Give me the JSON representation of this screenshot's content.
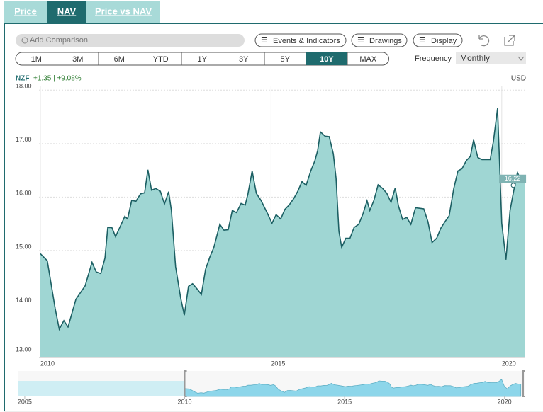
{
  "tabs": [
    "Price",
    "NAV",
    "Price vs NAV"
  ],
  "toolbar": {
    "search": "Add Comparison",
    "buttons": [
      "Events & Indicators",
      "Drawings",
      "Display"
    ]
  },
  "ranges": [
    "1M",
    "3M",
    "6M",
    "YTD",
    "1Y",
    "3Y",
    "5Y",
    "10Y",
    "MAX"
  ],
  "frequency": {
    "label": "Frequency",
    "value": "Monthly"
  },
  "ticker": {
    "symbol": "NZF",
    "change": "+1.35 | +9.08%",
    "currency": "USD"
  },
  "chart_data": {
    "type": "area",
    "color": "#9fd6d3",
    "line_color": "#1c5f63",
    "x": [
      2010.0,
      2010.15,
      2010.32,
      2010.41,
      2010.51,
      2010.6,
      2010.77,
      2010.97,
      2011.12,
      2011.21,
      2011.31,
      2011.4,
      2011.46,
      2011.55,
      2011.63,
      2011.83,
      2011.89,
      2011.98,
      2012.07,
      2012.17,
      2012.26,
      2012.33,
      2012.41,
      2012.5,
      2012.6,
      2012.69,
      2012.78,
      2012.84,
      2012.93,
      2013.04,
      2013.12,
      2013.21,
      2013.3,
      2013.39,
      2013.49,
      2013.58,
      2013.67,
      2013.76,
      2013.89,
      2013.98,
      2014.07,
      2014.16,
      2014.25,
      2014.35,
      2014.44,
      2014.5,
      2014.59,
      2014.68,
      2014.78,
      2014.93,
      2015.02,
      2015.11,
      2015.21,
      2015.3,
      2015.39,
      2015.49,
      2015.58,
      2015.67,
      2015.76,
      2015.86,
      2015.95,
      2016.01,
      2016.07,
      2016.17,
      2016.26,
      2016.35,
      2016.41,
      2016.47,
      2016.53,
      2016.62,
      2016.71,
      2016.8,
      2016.9,
      2016.99,
      2017.08,
      2017.14,
      2017.23,
      2017.32,
      2017.42,
      2017.51,
      2017.6,
      2017.69,
      2017.76,
      2017.85,
      2017.94,
      2018.03,
      2018.13,
      2018.22,
      2018.31,
      2018.4,
      2018.49,
      2018.59,
      2018.68,
      2018.77,
      2018.86,
      2018.96,
      2019.05,
      2019.14,
      2019.23,
      2019.32,
      2019.39,
      2019.48,
      2019.57,
      2019.66,
      2019.75,
      2019.82,
      2019.91,
      2020.0,
      2020.09,
      2020.18,
      2020.25,
      2020.34,
      2020.43,
      2020.51
    ],
    "values": [
      14.94,
      14.81,
      13.92,
      13.53,
      13.69,
      13.57,
      14.09,
      14.34,
      14.78,
      14.6,
      14.57,
      14.86,
      15.43,
      15.43,
      15.26,
      15.64,
      15.59,
      15.94,
      15.92,
      16.06,
      16.08,
      16.51,
      16.13,
      16.16,
      16.11,
      15.87,
      16.1,
      15.75,
      14.7,
      14.12,
      13.79,
      14.33,
      14.38,
      14.29,
      14.18,
      14.65,
      14.87,
      15.06,
      15.49,
      15.38,
      15.39,
      15.75,
      15.71,
      15.88,
      15.85,
      16.06,
      16.49,
      16.07,
      15.94,
      15.68,
      15.51,
      15.67,
      15.59,
      15.77,
      15.85,
      15.97,
      16.11,
      16.29,
      16.22,
      16.49,
      16.68,
      16.87,
      17.22,
      17.14,
      17.13,
      16.81,
      16.35,
      15.36,
      15.06,
      15.23,
      15.23,
      15.43,
      15.49,
      15.68,
      15.93,
      15.75,
      15.94,
      16.23,
      16.16,
      16.07,
      15.9,
      16.17,
      15.84,
      15.58,
      15.62,
      15.49,
      15.8,
      15.79,
      15.78,
      15.54,
      15.15,
      15.23,
      15.42,
      15.54,
      15.65,
      16.16,
      16.49,
      16.53,
      16.68,
      16.76,
      17.07,
      16.74,
      16.7,
      16.7,
      16.7,
      17.05,
      17.66,
      15.51,
      14.83,
      15.75,
      16.08,
      16.46,
      16.29,
      16.29
    ],
    "xlim": [
      2009.97,
      2020.51
    ],
    "ylim": [
      13.0,
      18.07
    ],
    "xticks": [
      2010,
      2015,
      2020
    ],
    "yticks": [
      {
        "value": 13,
        "label": "13.00"
      },
      {
        "value": 14,
        "label": "14.00"
      },
      {
        "value": 15,
        "label": "15.00"
      },
      {
        "value": 16,
        "label": "16.00"
      },
      {
        "value": 17,
        "label": "17.00"
      },
      {
        "value": 18,
        "label": "18.00"
      }
    ],
    "grid": true,
    "marker": {
      "x": 2020.25,
      "value": 16.22
    },
    "navigator": {
      "xlim": [
        2004.78,
        2020.65
      ],
      "xticks": [
        2005,
        2010,
        2015,
        2020
      ]
    }
  }
}
